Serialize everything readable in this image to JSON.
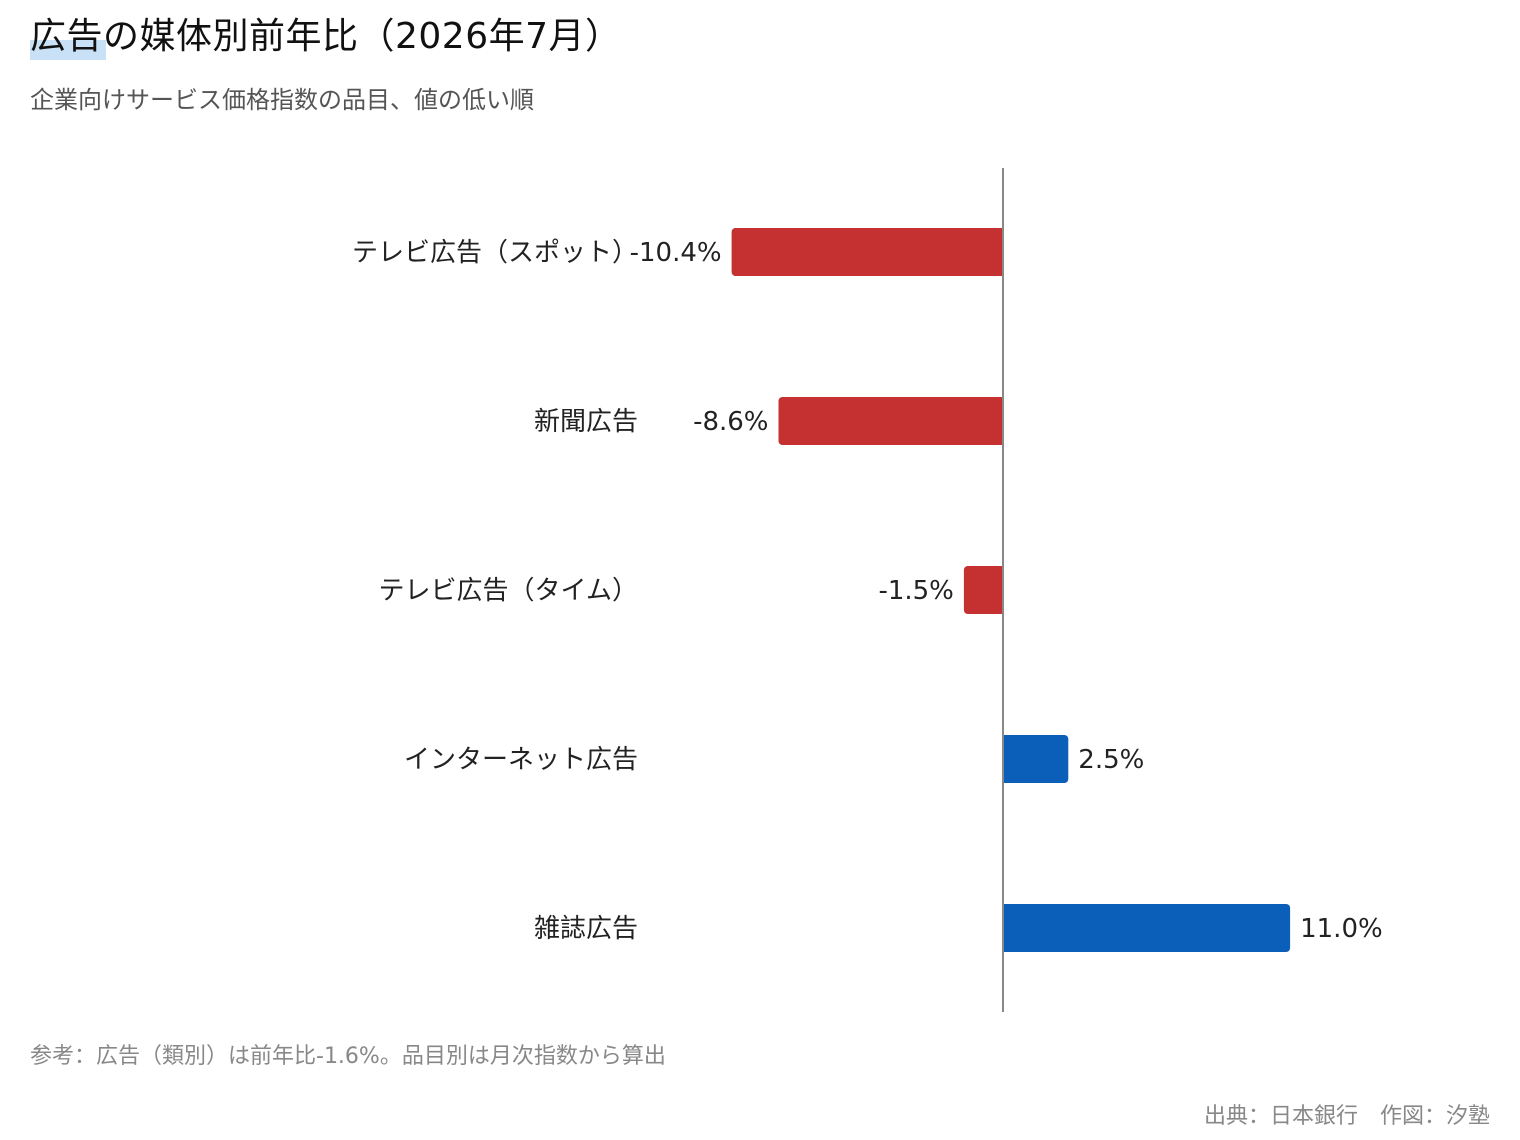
{
  "title": "広告の媒体別前年比（2026年7月）",
  "subtitle": "企業向けサービス価格指数の品目、値の低い順",
  "footnote": "参考：広告（類別）は前年比-1.6%。品目別は月次指数から算出",
  "source": "出典：日本銀行　作図：汐塾",
  "colors": {
    "negative": "#c53030",
    "positive": "#0b5fb8",
    "axis": "#888888",
    "text": "#222222",
    "title_highlight": "#c9e1f7"
  },
  "chart_data": {
    "type": "bar",
    "orientation": "horizontal",
    "categories": [
      "テレビ広告（スポット）",
      "新聞広告",
      "テレビ広告（タイム）",
      "インターネット広告",
      "雑誌広告"
    ],
    "values": [
      -10.4,
      -8.6,
      -1.5,
      2.5,
      11.0
    ],
    "labels": [
      "-10.4%",
      "-8.6%",
      "-1.5%",
      "2.5%",
      "11.0%"
    ],
    "unit": "%",
    "xlim": [
      -10.4,
      11.0
    ],
    "sort": "ascending",
    "grid": false,
    "legend": false
  }
}
